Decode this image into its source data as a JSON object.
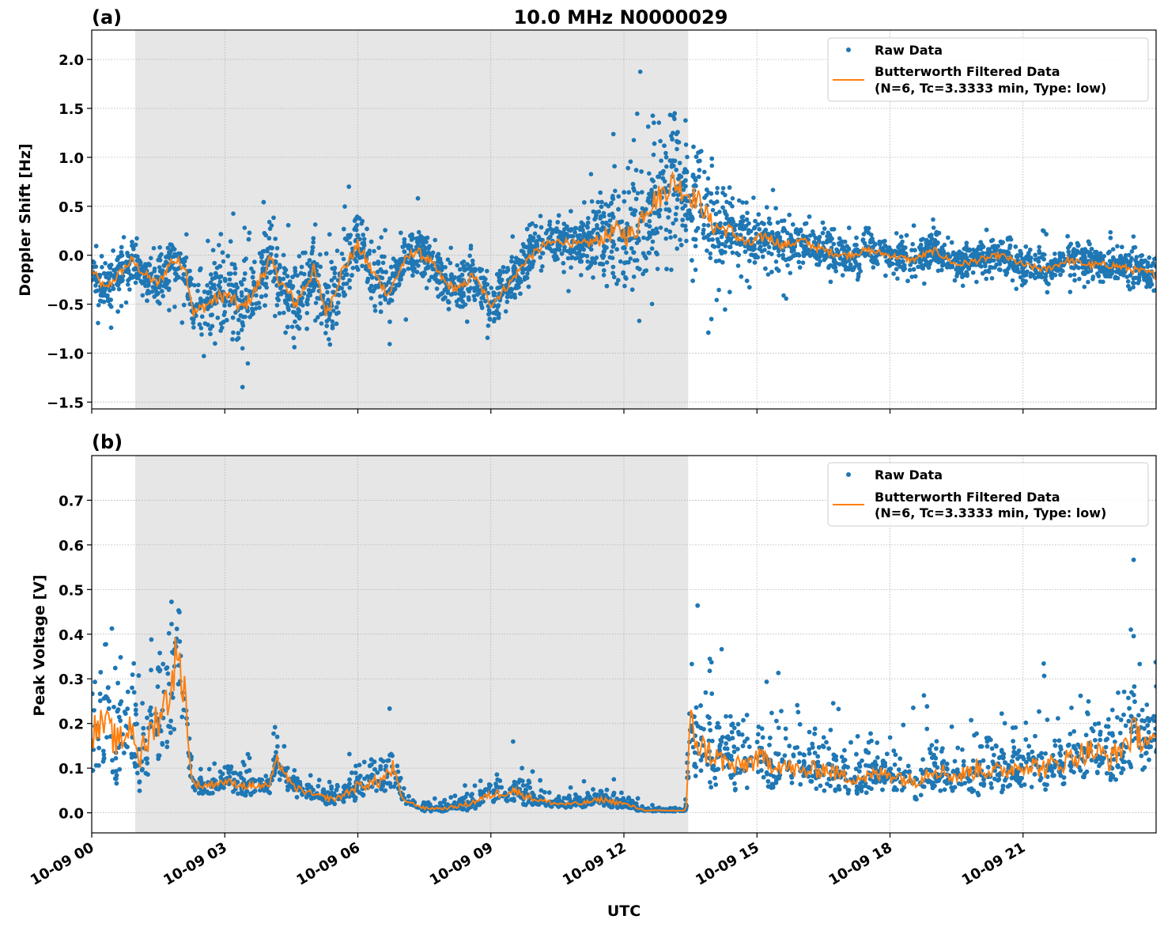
{
  "chart_data": [
    {
      "type": "scatter",
      "panel_label": "(a)",
      "title": "10.0 MHz N0000029",
      "xlabel": "",
      "ylabel": "Doppler Shift [Hz]",
      "xlim": [
        0,
        24
      ],
      "ylim": [
        -1.57,
        2.3
      ],
      "yticks": [
        2.0,
        1.5,
        1.0,
        0.5,
        0.0,
        -0.5,
        -1.0,
        -1.5
      ],
      "ytick_labels": [
        "2.0",
        "1.5",
        "1.0",
        "0.5",
        "0.0",
        "−0.5",
        "−1.0",
        "−1.5"
      ],
      "xticks": [
        0,
        3,
        6,
        9,
        12,
        15,
        18,
        21
      ],
      "grid": true,
      "shaded_span_hours": [
        0.98,
        13.45
      ],
      "legend": {
        "position": "top-right",
        "entries": [
          "Raw Data",
          "Butterworth Filtered Data",
          "(N=6, Tc=3.3333 min, Type: low)"
        ]
      },
      "series": [
        {
          "name": "Butterworth Filtered Data",
          "color": "#ff7f0e",
          "x_hours": [
            0,
            0.3,
            0.6,
            0.9,
            1.2,
            1.5,
            1.8,
            2.1,
            2.3,
            2.6,
            3.0,
            3.4,
            3.7,
            4.0,
            4.3,
            4.6,
            5.0,
            5.3,
            5.6,
            6.0,
            6.3,
            6.7,
            7.0,
            7.3,
            7.6,
            8.0,
            8.3,
            8.6,
            9.0,
            9.4,
            9.8,
            10.2,
            10.6,
            11.0,
            11.4,
            11.8,
            12.2,
            12.5,
            12.8,
            13.1,
            13.4,
            13.7,
            14.0,
            14.4,
            14.8,
            15.2,
            15.6,
            16.0,
            16.5,
            17.0,
            17.5,
            18.0,
            18.5,
            19.0,
            19.5,
            20.0,
            20.5,
            21.0,
            21.5,
            22.0,
            22.5,
            23.0,
            23.5,
            24.0
          ],
          "values": [
            -0.15,
            -0.35,
            -0.2,
            -0.05,
            -0.2,
            -0.3,
            -0.05,
            -0.1,
            -0.6,
            -0.5,
            -0.4,
            -0.55,
            -0.35,
            -0.05,
            -0.3,
            -0.5,
            -0.15,
            -0.6,
            -0.2,
            0.1,
            -0.15,
            -0.4,
            -0.1,
            0.05,
            -0.05,
            -0.3,
            -0.35,
            -0.2,
            -0.5,
            -0.3,
            -0.05,
            0.1,
            0.15,
            0.1,
            0.15,
            0.25,
            0.2,
            0.5,
            0.6,
            0.75,
            0.65,
            0.55,
            0.3,
            0.25,
            0.1,
            0.2,
            0.1,
            0.15,
            0.05,
            0.0,
            0.05,
            0.0,
            -0.05,
            0.05,
            -0.1,
            -0.05,
            0.0,
            -0.1,
            -0.15,
            -0.05,
            -0.1,
            -0.1,
            -0.15,
            -0.2
          ]
        },
        {
          "name": "Raw Data",
          "color": "#1f77b4",
          "x_hours": [
            0,
            1.0,
            2.0,
            3.0,
            5.0,
            7.0,
            9.0,
            11.0,
            12.3,
            13.45,
            14.5,
            16.0,
            18.0,
            21.0,
            24.0
          ],
          "spread": [
            0.2,
            0.2,
            0.25,
            0.35,
            0.35,
            0.25,
            0.2,
            0.2,
            0.6,
            0.6,
            0.3,
            0.2,
            0.15,
            0.15,
            0.18
          ]
        }
      ]
    },
    {
      "type": "scatter",
      "panel_label": "(b)",
      "xlabel": "UTC",
      "ylabel": "Peak Voltage [V]",
      "xlim": [
        0,
        24
      ],
      "ylim": [
        -0.045,
        0.8
      ],
      "yticks": [
        0.7,
        0.6,
        0.5,
        0.4,
        0.3,
        0.2,
        0.1,
        0.0
      ],
      "ytick_labels": [
        "0.7",
        "0.6",
        "0.5",
        "0.4",
        "0.3",
        "0.2",
        "0.1",
        "0.0"
      ],
      "xticks": [
        0,
        3,
        6,
        9,
        12,
        15,
        18,
        21
      ],
      "xtick_labels": [
        "10-09 00",
        "10-09 03",
        "10-09 06",
        "10-09 09",
        "10-09 12",
        "10-09 15",
        "10-09 18",
        "10-09 21"
      ],
      "grid": true,
      "shaded_span_hours": [
        0.98,
        13.45
      ],
      "legend": {
        "position": "top-right",
        "entries": [
          "Raw Data",
          "Butterworth Filtered Data",
          "(N=6, Tc=3.3333 min, Type: low)"
        ]
      },
      "series": [
        {
          "name": "Butterworth Filtered Data",
          "color": "#ff7f0e",
          "x_hours": [
            0,
            0.3,
            0.6,
            0.9,
            1.1,
            1.4,
            1.7,
            1.9,
            2.1,
            2.25,
            2.5,
            3.0,
            3.5,
            4.0,
            4.2,
            4.5,
            5.0,
            5.5,
            6.0,
            6.5,
            6.8,
            7.0,
            7.5,
            8.0,
            8.5,
            9.0,
            9.5,
            10.0,
            10.5,
            11.0,
            11.5,
            12.0,
            12.5,
            13.0,
            13.4,
            13.5,
            13.7,
            14.0,
            14.5,
            15.0,
            15.5,
            16.0,
            16.5,
            17.0,
            17.5,
            18.0,
            18.5,
            19.0,
            19.5,
            20.0,
            20.5,
            21.0,
            21.5,
            22.0,
            22.5,
            23.0,
            23.5,
            24.0
          ],
          "values": [
            0.18,
            0.2,
            0.15,
            0.2,
            0.12,
            0.2,
            0.25,
            0.35,
            0.28,
            0.07,
            0.06,
            0.07,
            0.06,
            0.06,
            0.12,
            0.06,
            0.04,
            0.03,
            0.06,
            0.07,
            0.1,
            0.03,
            0.01,
            0.01,
            0.02,
            0.04,
            0.05,
            0.03,
            0.02,
            0.02,
            0.03,
            0.02,
            0.005,
            0.005,
            0.005,
            0.2,
            0.15,
            0.13,
            0.1,
            0.12,
            0.11,
            0.09,
            0.1,
            0.08,
            0.08,
            0.09,
            0.07,
            0.1,
            0.08,
            0.1,
            0.09,
            0.11,
            0.1,
            0.12,
            0.14,
            0.12,
            0.18,
            0.15
          ],
          "spread": [
            0.13,
            0.13,
            0.13,
            0.13,
            0.13,
            0.15,
            0.18,
            0.2,
            0.15,
            0.03,
            0.03,
            0.03,
            0.03,
            0.03,
            0.06,
            0.03,
            0.02,
            0.02,
            0.04,
            0.05,
            0.07,
            0.01,
            0.01,
            0.01,
            0.02,
            0.03,
            0.04,
            0.02,
            0.015,
            0.015,
            0.02,
            0.015,
            0.004,
            0.004,
            0.004,
            0.15,
            0.12,
            0.1,
            0.08,
            0.09,
            0.08,
            0.07,
            0.07,
            0.06,
            0.06,
            0.07,
            0.06,
            0.07,
            0.06,
            0.08,
            0.07,
            0.08,
            0.08,
            0.09,
            0.1,
            0.1,
            0.12,
            0.1
          ]
        },
        {
          "name": "Raw Data",
          "color": "#1f77b4"
        }
      ]
    }
  ]
}
